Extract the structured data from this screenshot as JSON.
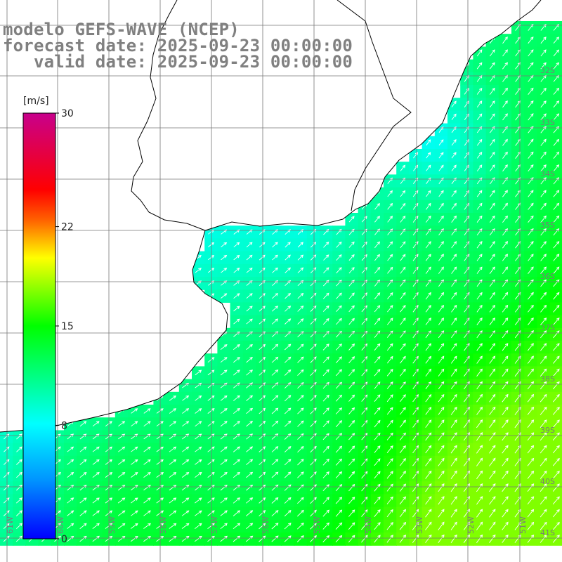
{
  "header": {
    "line1": "modelo GEFS-WAVE (NCEP)",
    "line2": "forecast date: 2025-09-23 00:00:00",
    "line3": "   valid date: 2025-09-23 00:00:00"
  },
  "colorbar": {
    "unit": "[m/s]",
    "ticks": [
      "30",
      "22",
      "15",
      "8",
      "0"
    ],
    "tick_values": [
      30,
      22,
      15,
      8,
      0
    ],
    "range": [
      0,
      30
    ]
  },
  "axes": {
    "lat_labels": [
      "32S",
      "33S",
      "34S",
      "35S",
      "36S",
      "37S",
      "38S",
      "39S",
      "40S",
      "41S"
    ],
    "lon_labels": [
      "61W",
      "60W",
      "59W",
      "58W",
      "57W",
      "56W",
      "55W",
      "54W",
      "53W",
      "52W",
      "51W"
    ],
    "lon_range": [
      -61,
      -50
    ],
    "lat_range": [
      -41,
      -31
    ]
  },
  "field": {
    "name": "wind speed",
    "direction": "toward northeast",
    "speed_range_ms": [
      6,
      17
    ]
  },
  "colors": {
    "land": "#ffffff",
    "coast": "#000000",
    "grid": "#777777",
    "arrows": "#ffffff",
    "title": "#808080"
  }
}
